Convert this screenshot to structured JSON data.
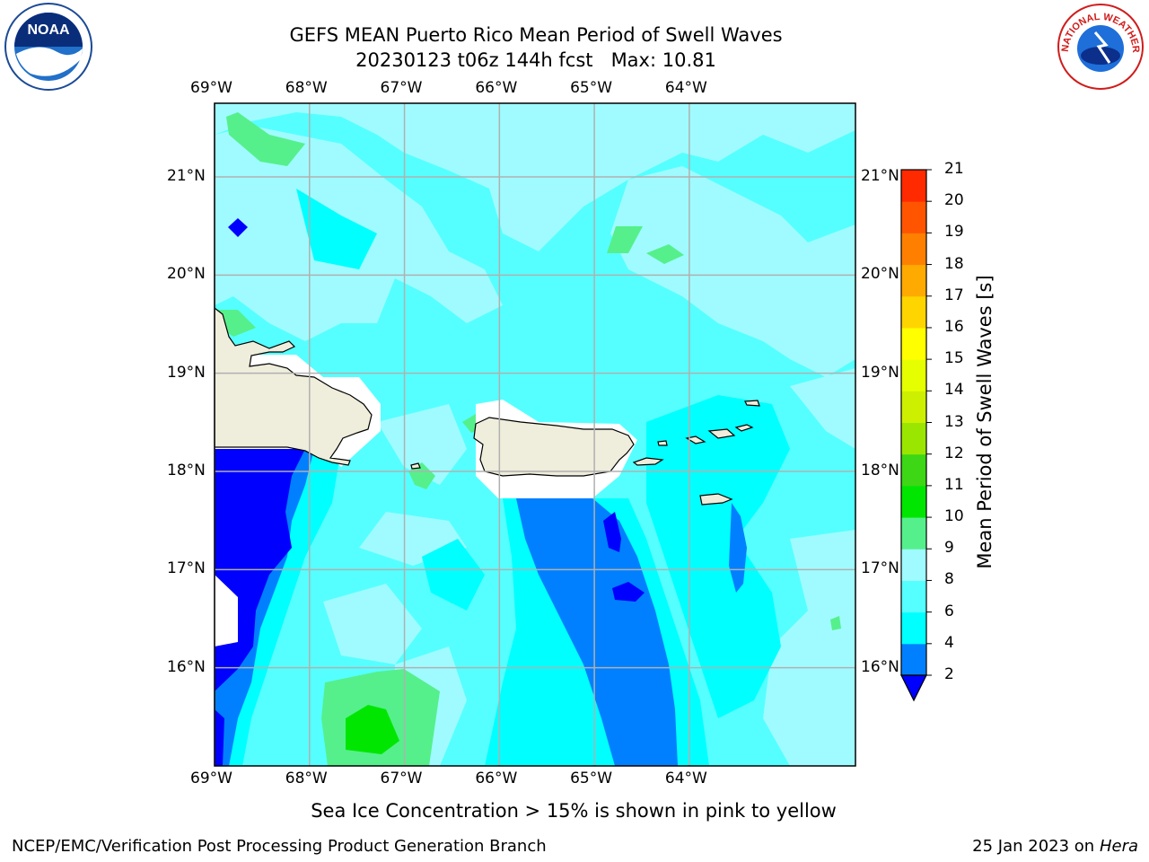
{
  "title": {
    "line1": "GEFS MEAN Puerto Rico Mean Period of Swell Waves",
    "line2": "20230123 t06z 144h fcst",
    "max_label": "Max: 10.81"
  },
  "map": {
    "lon_labels": [
      "69°W",
      "68°W",
      "67°W",
      "66°W",
      "65°W",
      "64°W"
    ],
    "lat_labels": [
      "21°N",
      "20°N",
      "19°N",
      "18°N",
      "17°N",
      "16°N"
    ],
    "lon_range": [
      -69.0,
      -62.25
    ],
    "lat_range": [
      15.0,
      21.75
    ],
    "land_color": "#efeddb",
    "ocean_base_color": "#00ffff"
  },
  "colorbar": {
    "label": "Mean Period of Swell Waves [s]",
    "ticks": [
      "21",
      "20",
      "19",
      "18",
      "17",
      "16",
      "15",
      "14",
      "13",
      "12",
      "11",
      "10",
      "9",
      "8",
      "6",
      "4",
      "2"
    ],
    "levels": [
      2,
      4,
      6,
      8,
      9,
      10,
      11,
      12,
      13,
      14,
      15,
      16,
      17,
      18,
      19,
      20,
      21
    ],
    "colors": [
      "#0080ff",
      "#00ffff",
      "#55ffff",
      "#9ffbff",
      "#55f08b",
      "#00e600",
      "#3dd716",
      "#9be600",
      "#cdf000",
      "#e6ff00",
      "#ffff00",
      "#ffd500",
      "#ffaa00",
      "#ff8000",
      "#ff5500",
      "#ff2a00"
    ],
    "under_color": "#0000ff"
  },
  "notes": {
    "sea_ice": "Sea Ice Concentration > 15% is shown in pink to yellow"
  },
  "footer": {
    "left": "NCEP/EMC/Verification Post Processing Product Generation Branch",
    "date": "25 Jan 2023 on",
    "machine": "Hera"
  },
  "logos": {
    "left": "noaa-logo",
    "right": "nws-logo",
    "nws_text": "NATIONAL WEATHER SERVICE"
  }
}
